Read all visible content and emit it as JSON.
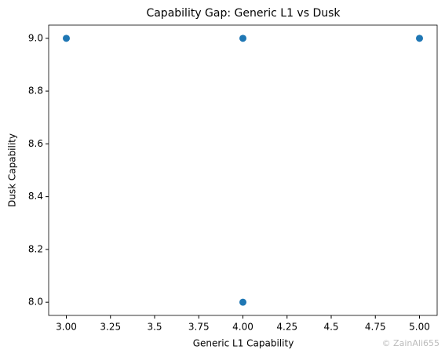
{
  "chart_data": {
    "type": "scatter",
    "title": "Capability Gap: Generic L1 vs Dusk",
    "x_label": "Generic L1 Capability",
    "y_label": "Dusk Capability",
    "series": [
      {
        "color": "#1f77b4",
        "x": [
          3,
          4,
          5,
          4
        ],
        "values": [
          9,
          9,
          9,
          8
        ]
      }
    ],
    "xlim": [
      2.9,
      5.1
    ],
    "xticks": [
      {
        "value": 3,
        "label": "3.00"
      },
      3.25,
      3.5,
      3.75,
      {
        "value": 4,
        "label": "4.00"
      },
      4.25,
      4.5,
      4.75,
      {
        "value": 5,
        "label": "5.00"
      }
    ],
    "ylim": [
      7.95,
      9.05
    ],
    "yticks": [
      {
        "value": 8,
        "label": "8.0"
      },
      8.2,
      8.4,
      8.6,
      8.8,
      {
        "value": 9,
        "label": "9.0"
      }
    ],
    "grid": false,
    "watermark": "© ZainAli655"
  }
}
